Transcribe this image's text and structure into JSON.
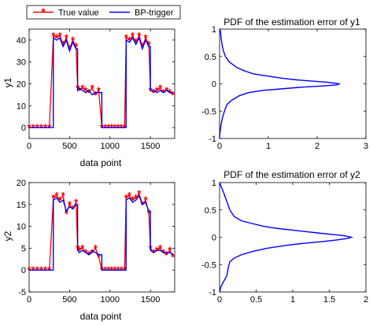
{
  "legend": {
    "entries": [
      {
        "label": "True value",
        "color": "#ff0000",
        "marker": "asterisk"
      },
      {
        "label": "BP-trigger",
        "color": "#0000ff",
        "marker": "none"
      }
    ]
  },
  "chart_data": [
    {
      "id": "ts_y1",
      "type": "line",
      "title": "",
      "xlabel": "data point",
      "ylabel": "y1",
      "xlim": [
        0,
        1800
      ],
      "ylim": [
        -5,
        45
      ],
      "xticks": [
        0,
        500,
        1000,
        1500
      ],
      "yticks": [
        0,
        10,
        20,
        30,
        40
      ],
      "series": [
        {
          "name": "True value",
          "color": "#ff0000",
          "marker": "asterisk",
          "x": [
            0,
            50,
            100,
            150,
            200,
            250,
            300,
            340,
            380,
            420,
            460,
            500,
            540,
            580,
            600,
            620,
            660,
            700,
            740,
            780,
            820,
            860,
            900,
            940,
            980,
            1020,
            1060,
            1100,
            1140,
            1180,
            1200,
            1240,
            1280,
            1320,
            1360,
            1400,
            1440,
            1480,
            1500,
            1540,
            1580,
            1620,
            1660,
            1700,
            1740,
            1780
          ],
          "y": [
            0,
            0,
            0,
            0,
            0,
            0,
            42,
            41,
            42,
            38,
            41,
            36,
            40,
            37,
            18,
            17,
            18,
            17,
            16,
            18,
            15,
            17,
            0,
            0,
            0,
            0,
            0,
            0,
            0,
            0,
            41,
            40,
            42,
            39,
            42,
            37,
            41,
            38,
            17,
            16,
            17,
            18,
            16,
            17,
            16,
            15
          ]
        },
        {
          "name": "BP-trigger",
          "color": "#0000ff",
          "marker": "none",
          "x": [
            0,
            50,
            100,
            150,
            200,
            250,
            299,
            300,
            340,
            380,
            420,
            460,
            500,
            540,
            580,
            599,
            600,
            620,
            660,
            700,
            740,
            780,
            820,
            860,
            899,
            900,
            940,
            980,
            1020,
            1060,
            1100,
            1140,
            1180,
            1199,
            1200,
            1240,
            1280,
            1320,
            1360,
            1400,
            1440,
            1480,
            1499,
            1500,
            1540,
            1580,
            1620,
            1660,
            1700,
            1740,
            1780
          ],
          "y": [
            0,
            0,
            0,
            0,
            0,
            0,
            0,
            41,
            40,
            41,
            37,
            40,
            35,
            39,
            36,
            36,
            17,
            18,
            17,
            16,
            17,
            15,
            16,
            16,
            16,
            0,
            0,
            0,
            0,
            0,
            0,
            0,
            0,
            0,
            40,
            39,
            41,
            38,
            41,
            36,
            40,
            37,
            37,
            17,
            17,
            16,
            17,
            16,
            17,
            16,
            16
          ]
        }
      ]
    },
    {
      "id": "pdf_y1",
      "type": "line",
      "title": "PDF of the estimation error of y1",
      "xlabel": "",
      "ylabel": "",
      "xlim": [
        0,
        3
      ],
      "ylim": [
        -1,
        1
      ],
      "xticks": [
        0,
        1,
        2,
        3
      ],
      "yticks": [
        -1,
        -0.5,
        0,
        0.5,
        1
      ],
      "ytick_labels": [
        "-1",
        "-0.5",
        "0",
        "0.5",
        "1"
      ],
      "series": [
        {
          "name": "",
          "color": "#0000ff",
          "marker": "none",
          "x": [
            0.0,
            0.02,
            0.03,
            0.05,
            0.08,
            0.12,
            0.2,
            0.35,
            0.5,
            0.7,
            1.0,
            1.3,
            1.6,
            1.9,
            2.2,
            2.45,
            2.4,
            2.1,
            1.7,
            1.3,
            0.9,
            0.6,
            0.4,
            0.25,
            0.15,
            0.1,
            0.06,
            0.03,
            0.01,
            0.0
          ],
          "y": [
            1.0,
            0.95,
            0.85,
            0.72,
            0.6,
            0.5,
            0.4,
            0.3,
            0.24,
            0.18,
            0.14,
            0.1,
            0.07,
            0.05,
            0.03,
            0.0,
            -0.02,
            -0.04,
            -0.06,
            -0.09,
            -0.12,
            -0.16,
            -0.22,
            -0.3,
            -0.38,
            -0.5,
            -0.62,
            -0.75,
            -0.88,
            -1.0
          ]
        }
      ]
    },
    {
      "id": "ts_y2",
      "type": "line",
      "title": "",
      "xlabel": "data point",
      "ylabel": "y2",
      "xlim": [
        0,
        1800
      ],
      "ylim": [
        -5,
        20
      ],
      "xticks": [
        0,
        500,
        1000,
        1500
      ],
      "yticks": [
        -5,
        0,
        5,
        10,
        15,
        20
      ],
      "series": [
        {
          "name": "True value",
          "color": "#ff0000",
          "marker": "asterisk",
          "x": [
            0,
            50,
            100,
            150,
            200,
            250,
            300,
            340,
            380,
            420,
            460,
            500,
            540,
            580,
            600,
            620,
            660,
            700,
            740,
            780,
            820,
            860,
            900,
            940,
            980,
            1020,
            1060,
            1100,
            1140,
            1180,
            1200,
            1240,
            1280,
            1320,
            1360,
            1400,
            1440,
            1480,
            1500,
            1540,
            1580,
            1620,
            1660,
            1700,
            1740,
            1780
          ],
          "y": [
            0,
            0,
            0,
            0,
            0,
            0,
            16.5,
            17,
            16,
            17,
            13,
            15,
            14,
            15.5,
            5,
            4.5,
            5,
            4,
            3.5,
            4,
            5,
            3,
            0,
            0,
            0,
            0,
            0,
            0,
            0,
            0,
            16.5,
            17,
            16,
            16.5,
            17.5,
            15,
            16,
            13,
            5,
            4,
            4.5,
            5,
            4,
            3.5,
            4.5,
            3
          ]
        },
        {
          "name": "BP-trigger",
          "color": "#0000ff",
          "marker": "none",
          "x": [
            0,
            50,
            100,
            150,
            200,
            250,
            299,
            300,
            340,
            380,
            420,
            460,
            500,
            540,
            580,
            599,
            600,
            620,
            660,
            700,
            740,
            780,
            820,
            860,
            899,
            900,
            940,
            980,
            1020,
            1060,
            1100,
            1140,
            1180,
            1199,
            1200,
            1240,
            1280,
            1320,
            1360,
            1400,
            1440,
            1480,
            1499,
            1500,
            1540,
            1580,
            1620,
            1660,
            1700,
            1740,
            1780
          ],
          "y": [
            0,
            0,
            0,
            0,
            0,
            0,
            0,
            16,
            16.5,
            15.5,
            16,
            13.5,
            14.5,
            14,
            15,
            15,
            4.5,
            4,
            4.5,
            4,
            3.5,
            4.5,
            4,
            3.5,
            3.5,
            0,
            0,
            0,
            0,
            0,
            0,
            0,
            0,
            0,
            16,
            16.5,
            15.5,
            16,
            17,
            15,
            15.5,
            13.5,
            13.5,
            4.5,
            4,
            4.5,
            4.5,
            4,
            4,
            4,
            3.5
          ]
        }
      ]
    },
    {
      "id": "pdf_y2",
      "type": "line",
      "title": "PDF of the estimation error of y2",
      "xlabel": "",
      "ylabel": "",
      "xlim": [
        0,
        2
      ],
      "ylim": [
        -1,
        1
      ],
      "xticks": [
        0,
        0.5,
        1,
        1.5,
        2
      ],
      "xtick_labels": [
        "0",
        "0.5",
        "1",
        "1.5",
        "2"
      ],
      "yticks": [
        -1,
        -0.5,
        0,
        0.5,
        1
      ],
      "ytick_labels": [
        "-1",
        "-0.5",
        "0",
        "0.5",
        "1"
      ],
      "series": [
        {
          "name": "",
          "color": "#0000ff",
          "marker": "none",
          "x": [
            0.0,
            0.03,
            0.06,
            0.1,
            0.14,
            0.2,
            0.3,
            0.45,
            0.6,
            0.8,
            1.0,
            1.2,
            1.4,
            1.55,
            1.7,
            1.8,
            1.75,
            1.6,
            1.4,
            1.15,
            0.9,
            0.65,
            0.45,
            0.3,
            0.2,
            0.14,
            0.12,
            0.1,
            0.06,
            0.02,
            0.0
          ],
          "y": [
            1.0,
            0.9,
            0.8,
            0.65,
            0.5,
            0.38,
            0.3,
            0.25,
            0.2,
            0.16,
            0.13,
            0.1,
            0.07,
            0.05,
            0.03,
            0.0,
            -0.02,
            -0.05,
            -0.08,
            -0.11,
            -0.15,
            -0.2,
            -0.26,
            -0.32,
            -0.38,
            -0.45,
            -0.55,
            -0.7,
            -0.8,
            -0.9,
            -1.0
          ]
        }
      ]
    }
  ]
}
